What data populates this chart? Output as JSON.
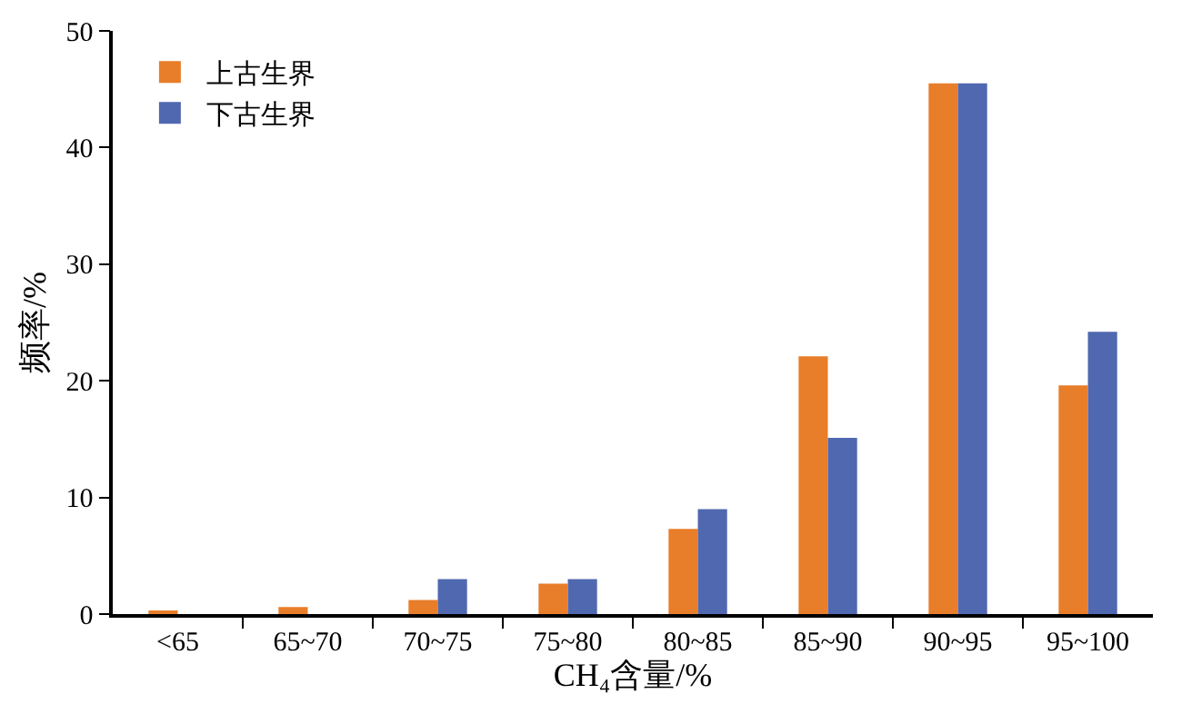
{
  "chart_data": {
    "type": "bar",
    "xlabel": "CH₄含量/%",
    "ylabel": "频率/%",
    "categories": [
      "<65",
      "65~70",
      "70~75",
      "75~80",
      "80~85",
      "85~90",
      "90~95",
      "95~100"
    ],
    "series": [
      {
        "name": "上古生界",
        "color": "#e87d2a",
        "values": [
          0.3,
          0.6,
          1.2,
          2.6,
          7.3,
          22.1,
          45.5,
          19.6
        ]
      },
      {
        "name": "下古生界",
        "color": "#5068b0",
        "values": [
          0,
          0,
          3.0,
          3.0,
          9.0,
          15.1,
          45.5,
          24.2
        ]
      }
    ],
    "ylim": [
      0,
      50
    ],
    "yticks": [
      0,
      10,
      20,
      30,
      40,
      50
    ],
    "legend": "top left"
  }
}
